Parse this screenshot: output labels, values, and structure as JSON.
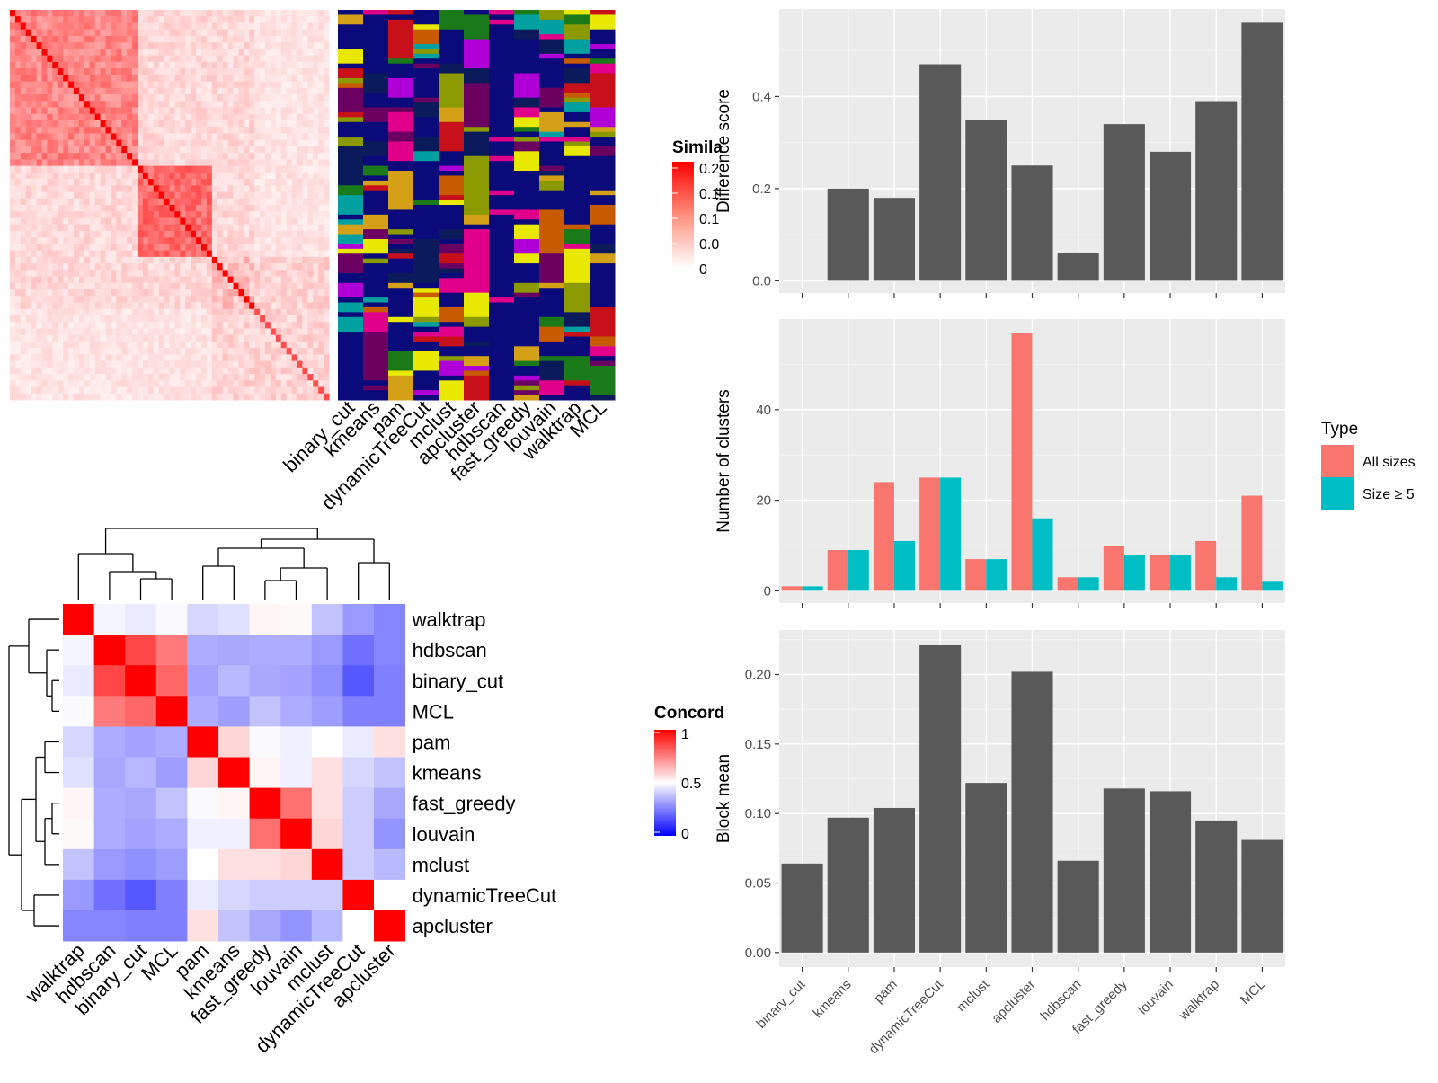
{
  "heatmap_similarity": {
    "legend_title": "Simila",
    "legend_ticks": [
      "0.2",
      "0.1",
      "0.1",
      "0.0",
      "0"
    ]
  },
  "method_labels_top": [
    "binary_cut",
    "kmeans",
    "pam",
    "dynamicTreeCut",
    "mclust",
    "apcluster",
    "hdbscan",
    "fast_greedy",
    "louvain",
    "walktrap",
    "MCL"
  ],
  "concordance": {
    "legend_title": "Concord",
    "legend_ticks": [
      "1",
      "0.5",
      "0"
    ],
    "row_labels": [
      "walktrap",
      "hdbscan",
      "binary_cut",
      "MCL",
      "pam",
      "kmeans",
      "fast_greedy",
      "louvain",
      "mclust",
      "dynamicTreeCut",
      "apcluster"
    ],
    "col_labels": [
      "walktrap",
      "hdbscan",
      "binary_cut",
      "MCL",
      "pam",
      "kmeans",
      "fast_greedy",
      "louvain",
      "mclust",
      "dynamicTreeCut",
      "apcluster"
    ]
  },
  "chart_data": [
    {
      "type": "bar",
      "ylabel": "Difference score",
      "categories": [
        "binary_cut",
        "kmeans",
        "pam",
        "dynamicTreeCut",
        "mclust",
        "apcluster",
        "hdbscan",
        "fast_greedy",
        "louvain",
        "walktrap",
        "MCL"
      ],
      "values": [
        0.0,
        0.2,
        0.18,
        0.47,
        0.35,
        0.25,
        0.06,
        0.34,
        0.28,
        0.39,
        0.56
      ],
      "ylim": [
        0,
        0.59
      ],
      "yticks": [
        0.0,
        0.2,
        0.4
      ],
      "ytick_labels": [
        "0.0",
        "0.2",
        "0.4"
      ],
      "bar_color": "#595959"
    },
    {
      "type": "bar",
      "ylabel": "Number of clusters",
      "categories": [
        "binary_cut",
        "kmeans",
        "pam",
        "dynamicTreeCut",
        "mclust",
        "apcluster",
        "hdbscan",
        "fast_greedy",
        "louvain",
        "walktrap",
        "MCL"
      ],
      "series": [
        {
          "name": "All sizes",
          "color": "#f8766d",
          "values": [
            1,
            9,
            24,
            25,
            7,
            57,
            3,
            10,
            8,
            11,
            21
          ]
        },
        {
          "name": "Size ≥ 5",
          "color": "#00bfc4",
          "values": [
            1,
            9,
            11,
            25,
            7,
            16,
            3,
            8,
            8,
            3,
            2
          ]
        }
      ],
      "ylim": [
        0,
        60
      ],
      "yticks": [
        0,
        20,
        40
      ],
      "ytick_labels": [
        "0",
        "20",
        "40"
      ],
      "legend": {
        "title": "Type",
        "position": "right"
      }
    },
    {
      "type": "bar",
      "ylabel": "Block mean",
      "categories": [
        "binary_cut",
        "kmeans",
        "pam",
        "dynamicTreeCut",
        "mclust",
        "apcluster",
        "hdbscan",
        "fast_greedy",
        "louvain",
        "walktrap",
        "MCL"
      ],
      "values": [
        0.064,
        0.097,
        0.104,
        0.221,
        0.122,
        0.202,
        0.066,
        0.118,
        0.116,
        0.095,
        0.081
      ],
      "ylim": [
        0,
        0.232
      ],
      "yticks": [
        0.0,
        0.05,
        0.1,
        0.15,
        0.2
      ],
      "ytick_labels": [
        "0.00",
        "0.05",
        "0.10",
        "0.15",
        "0.20"
      ],
      "bar_color": "#595959"
    },
    {
      "type": "heatmap",
      "rows": [
        "walktrap",
        "hdbscan",
        "binary_cut",
        "MCL",
        "pam",
        "kmeans",
        "fast_greedy",
        "louvain",
        "mclust",
        "dynamicTreeCut",
        "apcluster"
      ],
      "cols": [
        "walktrap",
        "hdbscan",
        "binary_cut",
        "MCL",
        "pam",
        "kmeans",
        "fast_greedy",
        "louvain",
        "mclust",
        "dynamicTreeCut",
        "apcluster"
      ],
      "values": [
        [
          1.0,
          0.48,
          0.46,
          0.49,
          0.42,
          0.44,
          0.52,
          0.51,
          0.38,
          0.3,
          0.26
        ],
        [
          0.48,
          1.0,
          0.86,
          0.76,
          0.34,
          0.33,
          0.34,
          0.34,
          0.3,
          0.22,
          0.26
        ],
        [
          0.46,
          0.86,
          1.0,
          0.8,
          0.32,
          0.36,
          0.33,
          0.32,
          0.28,
          0.17,
          0.25
        ],
        [
          0.49,
          0.76,
          0.8,
          1.0,
          0.34,
          0.31,
          0.38,
          0.34,
          0.31,
          0.25,
          0.25
        ],
        [
          0.42,
          0.34,
          0.32,
          0.34,
          1.0,
          0.58,
          0.49,
          0.47,
          0.5,
          0.46,
          0.56
        ],
        [
          0.44,
          0.33,
          0.36,
          0.31,
          0.58,
          1.0,
          0.52,
          0.47,
          0.56,
          0.42,
          0.38
        ],
        [
          0.52,
          0.34,
          0.33,
          0.38,
          0.49,
          0.52,
          1.0,
          0.78,
          0.56,
          0.4,
          0.33
        ],
        [
          0.51,
          0.34,
          0.32,
          0.34,
          0.47,
          0.47,
          0.78,
          1.0,
          0.58,
          0.4,
          0.29
        ],
        [
          0.38,
          0.3,
          0.28,
          0.31,
          0.5,
          0.56,
          0.56,
          0.58,
          1.0,
          0.4,
          0.36
        ],
        [
          0.3,
          0.22,
          0.17,
          0.25,
          0.46,
          0.42,
          0.4,
          0.4,
          0.4,
          1.0,
          0.5
        ],
        [
          0.26,
          0.26,
          0.25,
          0.25,
          0.56,
          0.38,
          0.33,
          0.29,
          0.36,
          0.5,
          1.0
        ]
      ],
      "scale": {
        "min": 0,
        "mid": 0.5,
        "max": 1,
        "colors": [
          "#0000ff",
          "#ffffff",
          "#ff0000"
        ]
      }
    }
  ]
}
